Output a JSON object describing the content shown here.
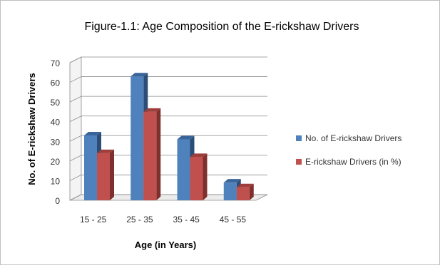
{
  "chart_data": {
    "type": "bar",
    "title": "Figure-1.1: Age Composition of the E-rickshaw Drivers",
    "xlabel": "Age (in Years)",
    "ylabel": "No. of E-rickshaw Drivers",
    "categories": [
      "15 - 25",
      "25 - 35",
      "35 - 45",
      "45 - 55"
    ],
    "series": [
      {
        "name": "No. of E-rickshaw Drivers",
        "values": [
          33,
          63,
          31,
          9
        ],
        "color": "#4f81bd",
        "side_color": "#2c4d75",
        "top_color": "#3a659a"
      },
      {
        "name": "E-rickshaw Drivers (in %)",
        "values": [
          24,
          45,
          22,
          6.6
        ],
        "color": "#c0504d",
        "side_color": "#7f2f2d",
        "top_color": "#9e3e3b"
      }
    ],
    "ylim": [
      0,
      70
    ],
    "yticks": [
      0,
      10,
      20,
      30,
      40,
      50,
      60,
      70
    ],
    "grid": true,
    "legend_position": "right",
    "style": "3d-clustered-column"
  }
}
